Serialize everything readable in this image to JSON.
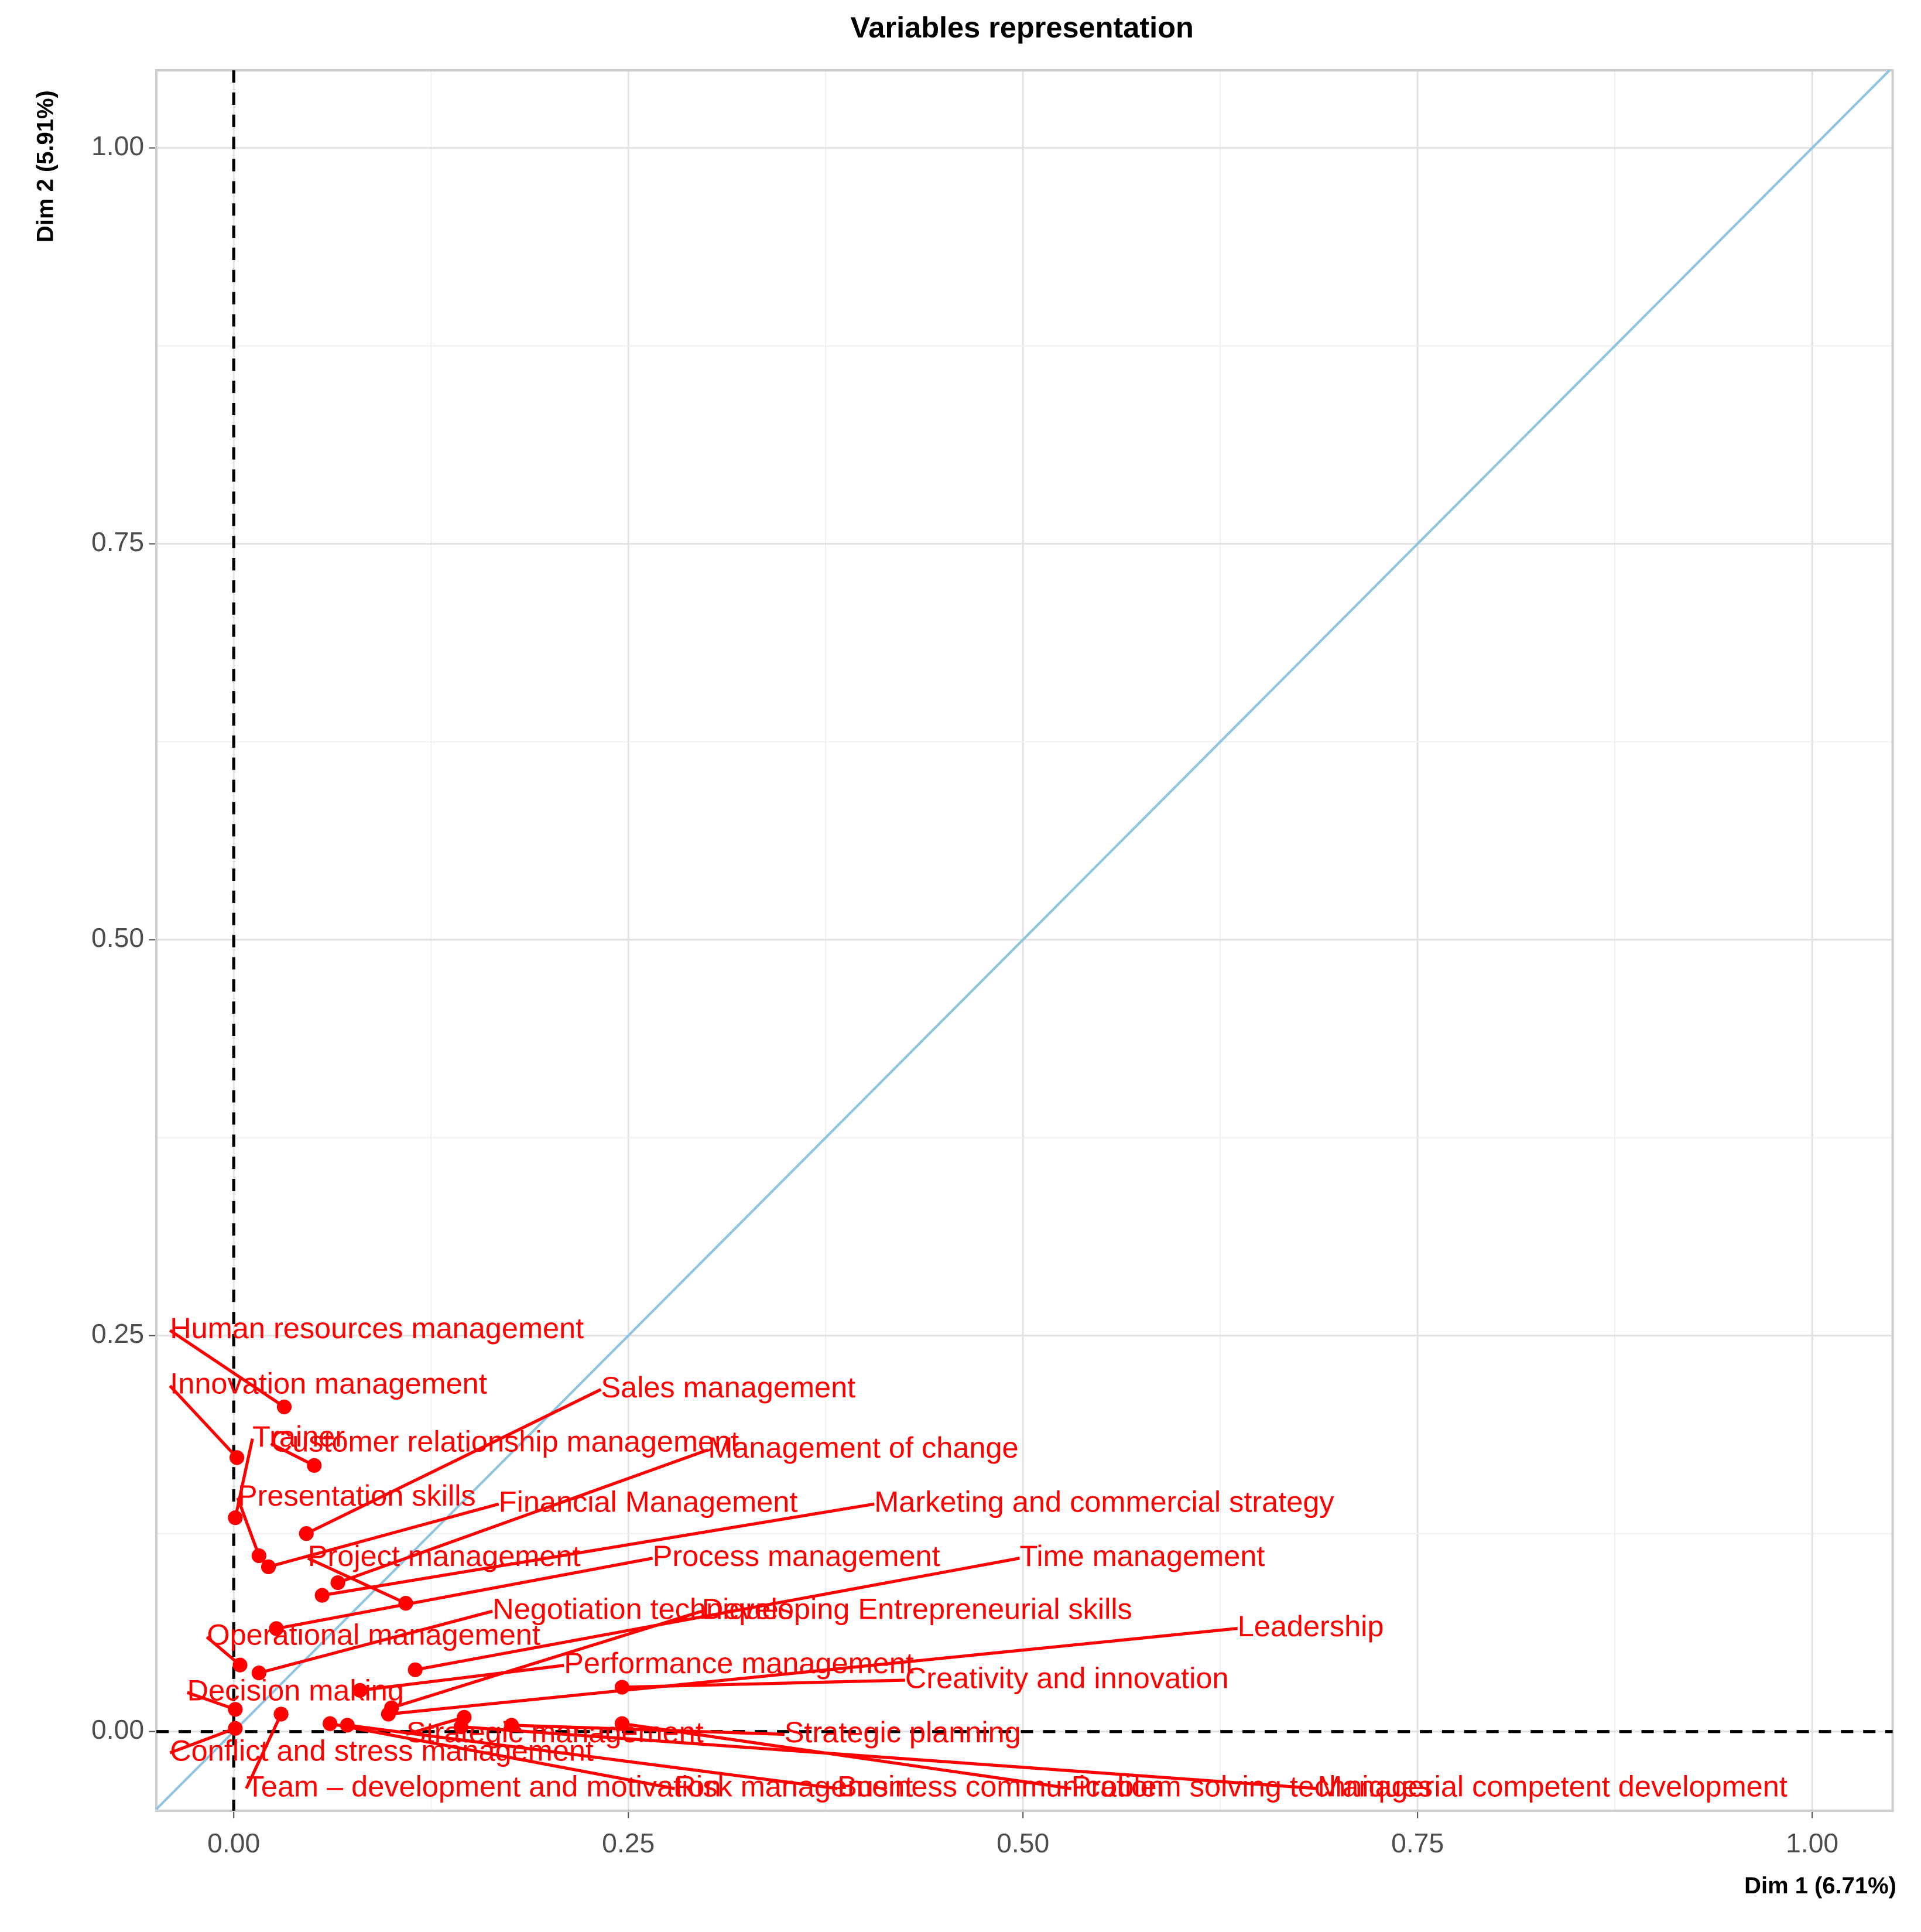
{
  "chart_data": {
    "type": "scatter",
    "title": "Variables representation",
    "x_label": "Dim 1 (6.71%)",
    "y_label": "Dim 2 (5.91%)",
    "labels": [
      "Human resources management",
      "Innovation management",
      "Trainer",
      "Customer relationship management",
      "Sales management",
      "Management of change",
      "Presentation skills",
      "Financial Management",
      "Marketing and commercial strategy",
      "Project management",
      "Process management",
      "Time management",
      "Negotiation techniques",
      "Developing Entrepreneurial skills",
      "Operational management",
      "Leadership",
      "Performance management",
      "Creativity and innovation",
      "Decision making",
      "Strategic management",
      "Strategic planning",
      "Conflict and stress management",
      "Team – development and motivation",
      "Risk management",
      "Business communication",
      "Problem solving techniques",
      "Managerial competent development"
    ],
    "x": [
      0.032,
      0.002,
      0.001,
      0.051,
      0.046,
      0.066,
      0.016,
      0.022,
      0.056,
      0.109,
      0.027,
      0.115,
      0.016,
      0.1,
      0.004,
      0.098,
      0.08,
      0.246,
      0.001,
      0.146,
      0.176,
      0.001,
      0.03,
      0.061,
      0.072,
      0.246,
      0.144
    ],
    "values": [
      0.205,
      0.173,
      0.135,
      0.168,
      0.125,
      0.094,
      0.111,
      0.104,
      0.086,
      0.081,
      0.065,
      0.039,
      0.037,
      0.015,
      0.042,
      0.011,
      0.026,
      0.028,
      0.014,
      0.009,
      0.004,
      0.002,
      0.011,
      0.005,
      0.004,
      0.005,
      0.003
    ],
    "color": "#ff0000",
    "diagonal_color": "#8ec5e0",
    "xlim": [
      -0.049,
      1.051
    ],
    "ylim": [
      -0.05,
      1.049
    ],
    "xticks": [
      {
        "value": 0,
        "label": "0.00"
      },
      {
        "value": 0.25,
        "label": "0.25"
      },
      {
        "value": 0.5,
        "label": "0.50"
      },
      {
        "value": 0.75,
        "label": "0.75"
      },
      {
        "value": 1,
        "label": "1.00"
      }
    ],
    "yticks": [
      {
        "value": 0,
        "label": "0.00"
      },
      {
        "value": 0.25,
        "label": "0.25"
      },
      {
        "value": 0.5,
        "label": "0.50"
      },
      {
        "value": 0.75,
        "label": "0.75"
      },
      {
        "value": 1,
        "label": "1.00"
      }
    ],
    "grid": true,
    "diagonal": true,
    "origin_lines": true
  }
}
